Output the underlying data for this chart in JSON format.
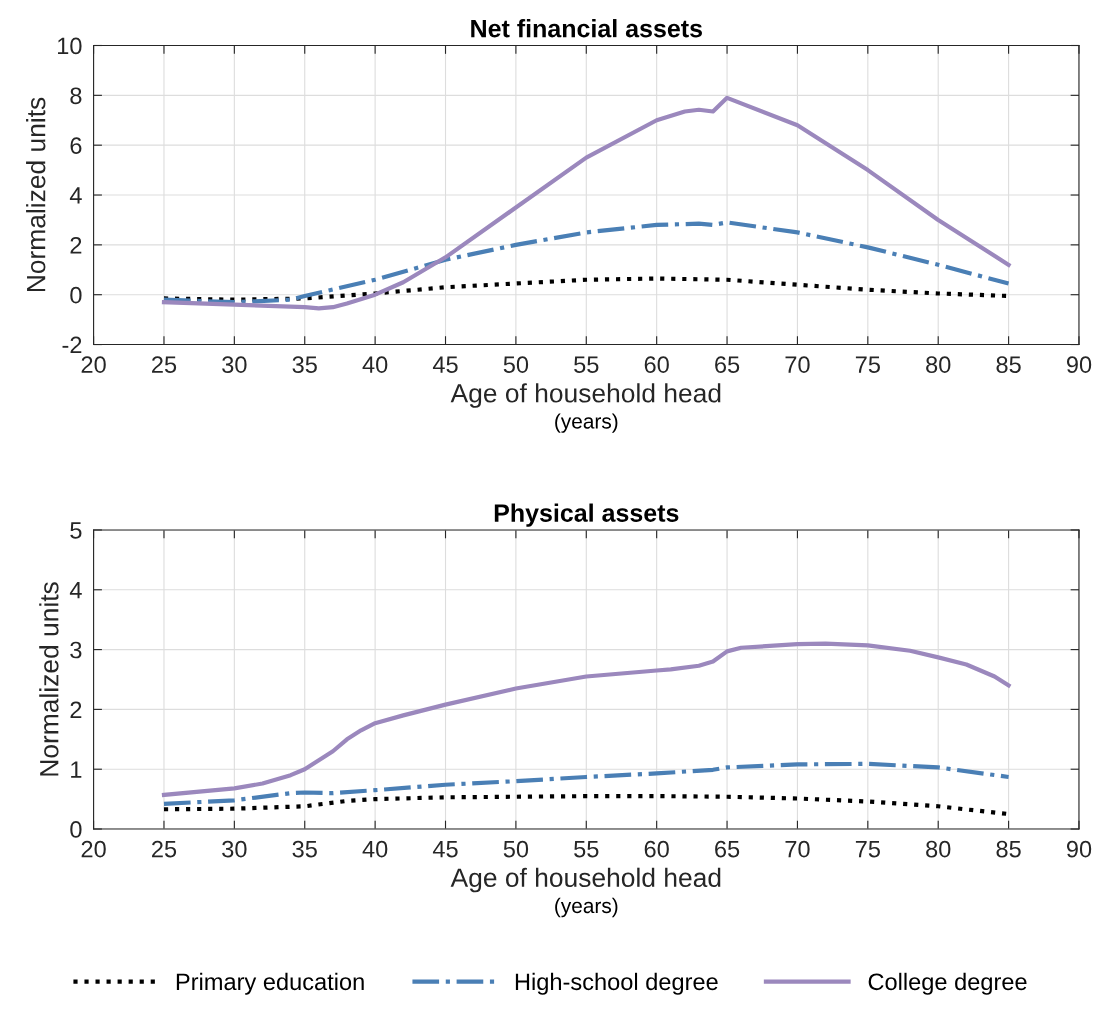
{
  "chart_data": [
    {
      "type": "line",
      "title": "Net financial assets",
      "xlabel": "Age of household head",
      "ylabel": "Normalized units",
      "annotations": [
        "(years)"
      ],
      "xlim": [
        20,
        90
      ],
      "xticks": [
        20,
        25,
        30,
        35,
        40,
        45,
        50,
        55,
        60,
        65,
        70,
        75,
        80,
        85,
        90
      ],
      "ylim": [
        -2,
        10
      ],
      "yticks": [
        -2,
        0,
        2,
        4,
        6,
        8,
        10
      ],
      "grid": true,
      "series": [
        {
          "color": "#000000",
          "line_style": "dotted",
          "x": [
            25,
            30,
            35,
            40,
            45,
            50,
            55,
            60,
            65,
            70,
            75,
            80,
            85
          ],
          "values": [
            -0.15,
            -0.2,
            -0.15,
            0.05,
            0.3,
            0.45,
            0.6,
            0.65,
            0.6,
            0.4,
            0.2,
            0.05,
            -0.05
          ]
        },
        {
          "color": "#4a7fb5",
          "line_style": "dashdot",
          "x": [
            25,
            30,
            34,
            35,
            40,
            45,
            50,
            55,
            60,
            63,
            64,
            65,
            70,
            75,
            80,
            85
          ],
          "values": [
            -0.2,
            -0.3,
            -0.2,
            -0.05,
            0.6,
            1.4,
            2.0,
            2.5,
            2.8,
            2.85,
            2.8,
            2.9,
            2.5,
            1.9,
            1.2,
            0.45
          ]
        },
        {
          "color": "#9b88bd",
          "line_style": "solid",
          "x": [
            25,
            30,
            35,
            36,
            37,
            38,
            40,
            42,
            45,
            50,
            55,
            60,
            62,
            63,
            64,
            65,
            70,
            75,
            80,
            85
          ],
          "values": [
            -0.3,
            -0.4,
            -0.5,
            -0.55,
            -0.5,
            -0.35,
            0,
            0.5,
            1.5,
            3.5,
            5.5,
            7.0,
            7.35,
            7.42,
            7.35,
            7.9,
            6.8,
            5.0,
            3.0,
            1.2
          ]
        }
      ]
    },
    {
      "type": "line",
      "title": "Physical assets",
      "xlabel": "Age of household head",
      "ylabel": "Normalized units",
      "annotations": [
        "(years)"
      ],
      "xlim": [
        20,
        90
      ],
      "xticks": [
        20,
        25,
        30,
        35,
        40,
        45,
        50,
        55,
        60,
        65,
        70,
        75,
        80,
        85,
        90
      ],
      "ylim": [
        0,
        5
      ],
      "yticks": [
        0,
        1,
        2,
        3,
        4,
        5
      ],
      "grid": true,
      "legend": "bottom",
      "series": [
        {
          "name": "Primary education",
          "color": "#000000",
          "line_style": "dotted",
          "x": [
            25,
            30,
            35,
            38,
            40,
            45,
            50,
            55,
            60,
            65,
            70,
            75,
            80,
            85
          ],
          "values": [
            0.33,
            0.34,
            0.38,
            0.47,
            0.5,
            0.53,
            0.54,
            0.55,
            0.55,
            0.54,
            0.51,
            0.46,
            0.38,
            0.25
          ]
        },
        {
          "name": "High-school degree",
          "color": "#4a7fb5",
          "line_style": "dashdot",
          "x": [
            25,
            30,
            33,
            34,
            35,
            37,
            40,
            45,
            50,
            55,
            60,
            64,
            65,
            70,
            75,
            80,
            85
          ],
          "values": [
            0.42,
            0.48,
            0.57,
            0.6,
            0.61,
            0.6,
            0.65,
            0.74,
            0.8,
            0.87,
            0.93,
            0.99,
            1.03,
            1.08,
            1.09,
            1.03,
            0.87
          ]
        },
        {
          "name": "College degree",
          "color": "#9b88bd",
          "line_style": "solid",
          "x": [
            25,
            30,
            32,
            34,
            35,
            36,
            37,
            38,
            39,
            40,
            42,
            45,
            50,
            55,
            60,
            61,
            63,
            64,
            65,
            66,
            70,
            72,
            75,
            78,
            80,
            82,
            84,
            85
          ],
          "values": [
            0.57,
            0.68,
            0.76,
            0.9,
            1.0,
            1.15,
            1.3,
            1.5,
            1.65,
            1.77,
            1.9,
            2.08,
            2.35,
            2.55,
            2.65,
            2.67,
            2.73,
            2.8,
            2.97,
            3.03,
            3.09,
            3.1,
            3.07,
            2.98,
            2.87,
            2.75,
            2.55,
            2.4
          ]
        }
      ]
    }
  ]
}
